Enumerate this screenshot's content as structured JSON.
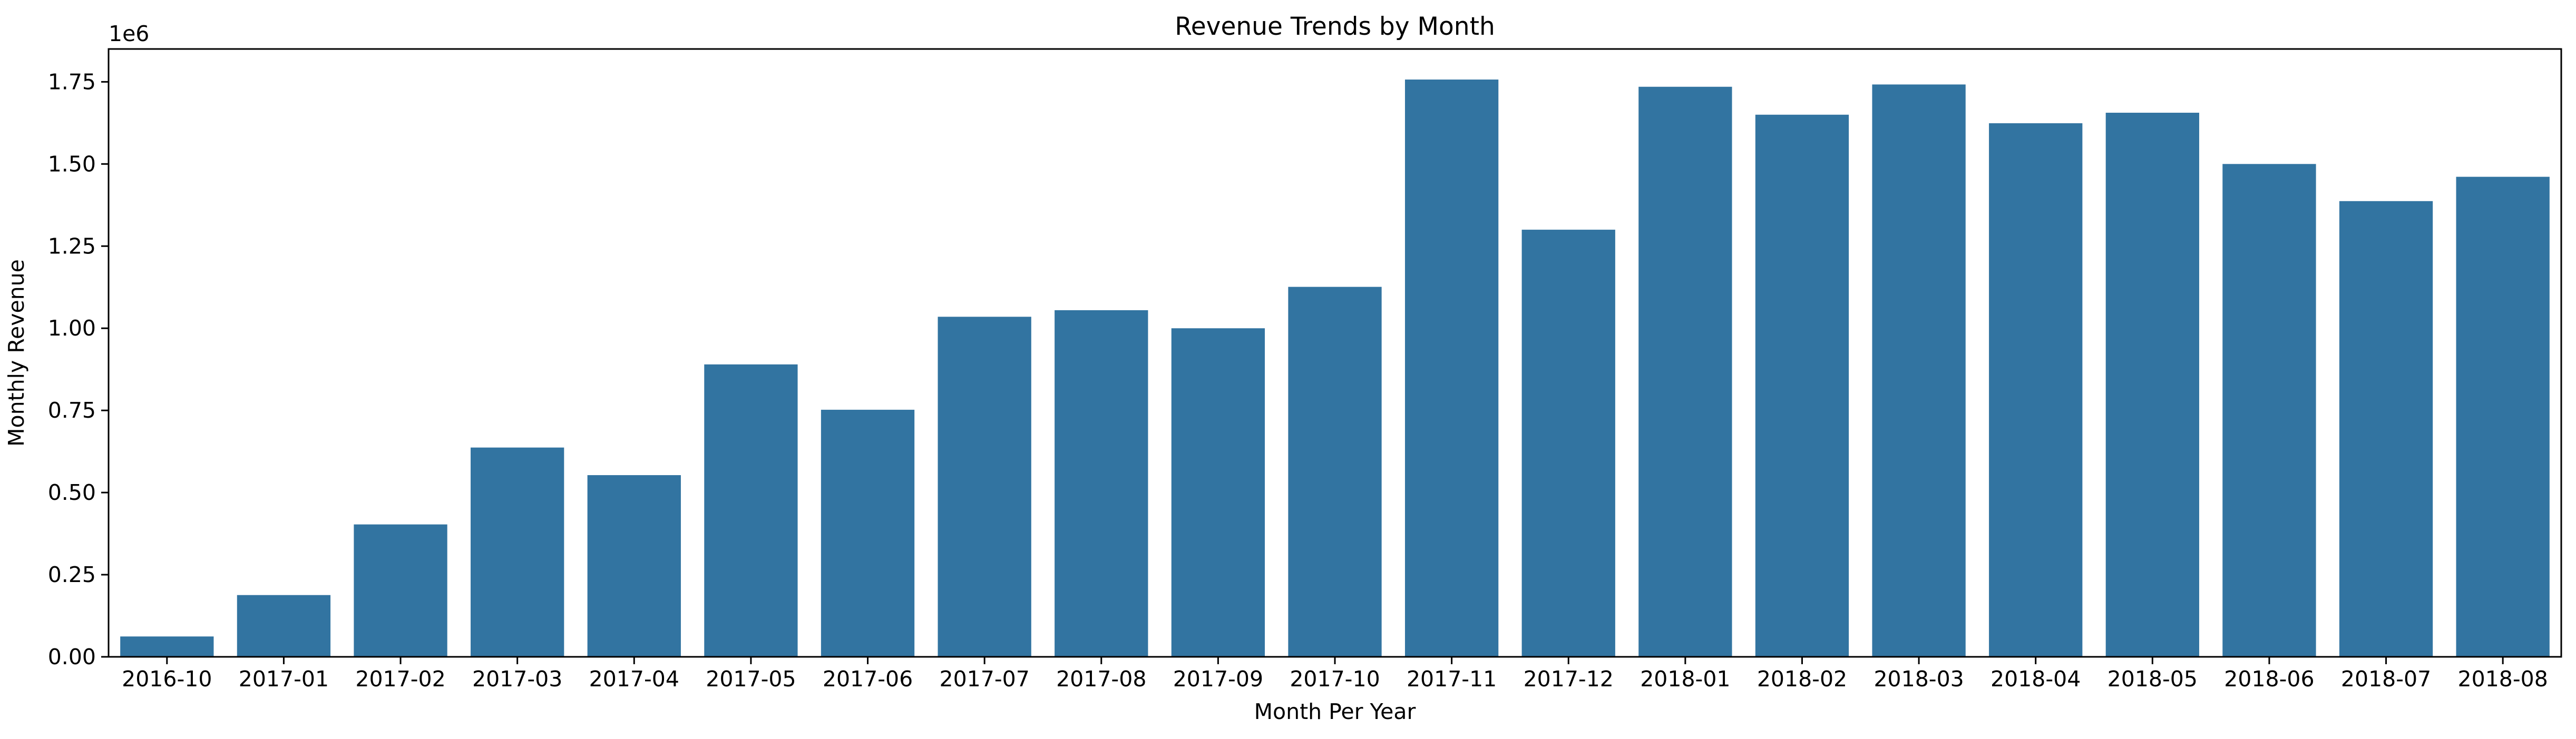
{
  "chart_data": {
    "type": "bar",
    "title": "Revenue Trends by Month",
    "xlabel": "Month Per Year",
    "ylabel": "Monthly Revenue",
    "y_offset_label": "1e6",
    "y_scale": 1000000,
    "ylim": [
      0,
      1850000
    ],
    "y_ticks": [
      0,
      250000,
      500000,
      750000,
      1000000,
      1250000,
      1500000,
      1750000
    ],
    "y_tick_labels": [
      "0.00",
      "0.25",
      "0.50",
      "0.75",
      "1.00",
      "1.25",
      "1.50",
      "1.75"
    ],
    "grid": false,
    "bar_color": "#3274a1",
    "categories": [
      "2016-10",
      "2017-01",
      "2017-02",
      "2017-03",
      "2017-04",
      "2017-05",
      "2017-06",
      "2017-07",
      "2017-08",
      "2017-09",
      "2017-10",
      "2017-11",
      "2017-12",
      "2018-01",
      "2018-02",
      "2018-03",
      "2018-04",
      "2018-05",
      "2018-06",
      "2018-07",
      "2018-08"
    ],
    "values": [
      62000,
      188000,
      403000,
      637000,
      553000,
      890000,
      752000,
      1035000,
      1055000,
      1000000,
      1126000,
      1757000,
      1300000,
      1735000,
      1650000,
      1742000,
      1624000,
      1656000,
      1500000,
      1387000,
      1461000
    ]
  }
}
